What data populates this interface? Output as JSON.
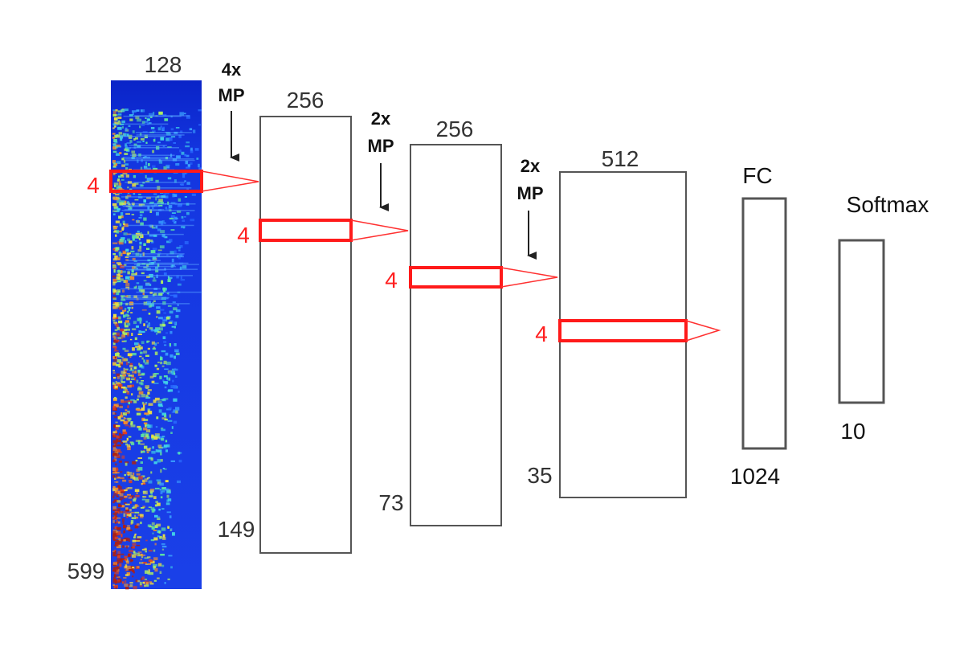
{
  "input": {
    "width_label": "128",
    "height_label": "599",
    "kernel_label": "4"
  },
  "conv1": {
    "width_label": "256",
    "height_label": "149",
    "kernel_label": "4",
    "pool_label": [
      "4x",
      "MP"
    ]
  },
  "conv2": {
    "width_label": "256",
    "height_label": "73",
    "kernel_label": "4",
    "pool_label": [
      "2x",
      "MP"
    ]
  },
  "conv3": {
    "width_label": "512",
    "height_label": "35",
    "kernel_label": "4",
    "pool_label": [
      "2x",
      "MP"
    ]
  },
  "fc": {
    "title": "FC",
    "size_label": "1024"
  },
  "softmax": {
    "title": "Softmax",
    "size_label": "10"
  },
  "colors": {
    "kernel": "#ff1a1a",
    "box_stroke": "#555555",
    "spectrogram_base": "#0a2fd6"
  }
}
